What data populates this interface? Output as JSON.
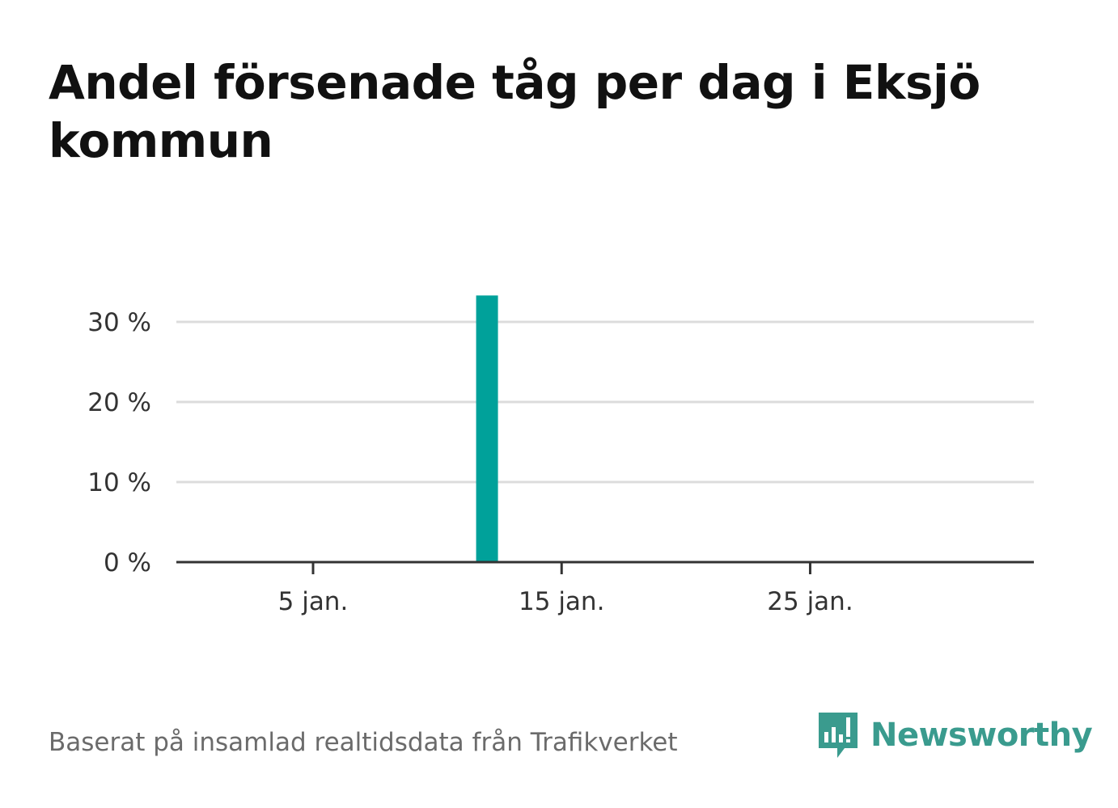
{
  "title": "Andel försenade tåg per dag i Eksjö kommun",
  "source": "Baserat på insamlad realtidsdata från Trafikverket",
  "brand": {
    "name": "Newsworthy",
    "color": "#3a9b8e",
    "icon": "chat-bubble-bar-chart-icon"
  },
  "colors": {
    "bar": "#00a19a",
    "grid": "#dcdcdc",
    "axis": "#333333",
    "text": "#333333"
  },
  "chart_data": {
    "type": "bar",
    "x_unit": "day of January",
    "x": [
      12
    ],
    "values": [
      33.3
    ],
    "xlim": [
      -0.5,
      34
    ],
    "ylim": [
      0,
      30
    ],
    "xticks": [
      5,
      15,
      25
    ],
    "xtick_labels": [
      "5 jan.",
      "15 jan.",
      "25 jan."
    ],
    "yticks": [
      0,
      10,
      20,
      30
    ],
    "ytick_labels": [
      "0 %",
      "10 %",
      "20 %",
      "30 %"
    ],
    "grid": true,
    "legend": "none"
  }
}
